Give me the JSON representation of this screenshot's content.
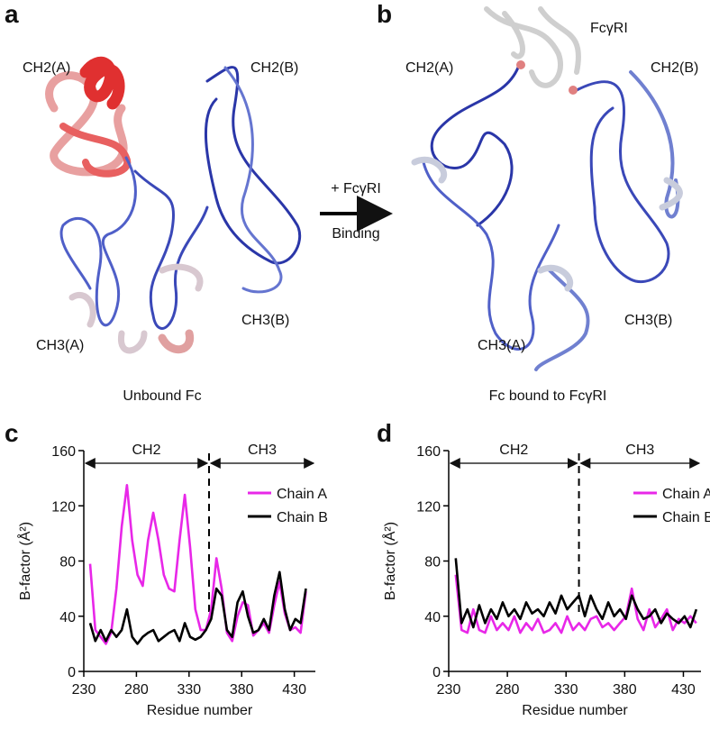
{
  "panels": [
    {
      "label": "a",
      "domains": [
        "CH2(A)",
        "CH2(B)",
        "CH3(A)",
        "CH3(B)"
      ],
      "caption": "Unbound Fc"
    },
    {
      "label": "b",
      "domains": [
        "CH2(A)",
        "CH2(B)",
        "CH3(A)",
        "CH3(B)"
      ],
      "receptor": "FcγRI",
      "caption": "Fc bound to FcγRI"
    }
  ],
  "arrow": {
    "top": "+ FcγRI",
    "bottom": "Binding"
  },
  "chart_data": [
    {
      "type": "line",
      "label": "c",
      "xlabel": "Residue number",
      "ylabel": "B-factor (Å²)",
      "x": [
        236,
        241,
        246,
        251,
        256,
        261,
        266,
        271,
        276,
        281,
        286,
        291,
        296,
        301,
        306,
        311,
        316,
        321,
        326,
        331,
        336,
        341,
        346,
        351,
        356,
        361,
        366,
        371,
        376,
        381,
        386,
        391,
        396,
        401,
        406,
        411,
        416,
        421,
        426,
        431,
        436,
        441
      ],
      "series": [
        {
          "name": "Chain A",
          "color": "#e827e8",
          "values": [
            78,
            30,
            25,
            20,
            28,
            60,
            105,
            135,
            95,
            70,
            62,
            95,
            115,
            95,
            70,
            60,
            58,
            95,
            128,
            90,
            45,
            30,
            30,
            45,
            82,
            60,
            28,
            22,
            40,
            50,
            48,
            26,
            30,
            35,
            28,
            48,
            65,
            42,
            30,
            32,
            28,
            58
          ]
        },
        {
          "name": "Chain B",
          "color": "#000000",
          "values": [
            35,
            22,
            30,
            22,
            30,
            25,
            30,
            45,
            25,
            20,
            25,
            28,
            30,
            22,
            25,
            28,
            30,
            22,
            35,
            25,
            23,
            25,
            30,
            38,
            60,
            55,
            30,
            25,
            50,
            58,
            40,
            28,
            30,
            38,
            30,
            55,
            72,
            45,
            30,
            38,
            35,
            60
          ]
        }
      ],
      "xlim": [
        230,
        450
      ],
      "ylim": [
        0,
        160
      ],
      "xticks": [
        230,
        280,
        330,
        380,
        430
      ],
      "yticks": [
        0,
        40,
        80,
        120,
        160
      ],
      "legend": "upper right",
      "regions": [
        "CH2",
        "CH3"
      ],
      "boundary": 349
    },
    {
      "type": "line",
      "label": "d",
      "xlabel": "Residue number",
      "ylabel": "B-factor (Å²)",
      "x": [
        236,
        241,
        246,
        251,
        256,
        261,
        266,
        271,
        276,
        281,
        286,
        291,
        296,
        301,
        306,
        311,
        316,
        321,
        326,
        331,
        336,
        341,
        346,
        351,
        356,
        361,
        366,
        371,
        376,
        381,
        386,
        391,
        396,
        401,
        406,
        411,
        416,
        421,
        426,
        431,
        436,
        441
      ],
      "series": [
        {
          "name": "Chain A",
          "color": "#e827e8",
          "values": [
            70,
            30,
            28,
            45,
            30,
            28,
            40,
            30,
            35,
            30,
            40,
            28,
            35,
            30,
            38,
            28,
            30,
            35,
            28,
            40,
            30,
            35,
            30,
            38,
            40,
            32,
            35,
            30,
            35,
            40,
            60,
            38,
            30,
            45,
            32,
            38,
            45,
            30,
            38,
            35,
            40,
            35
          ]
        },
        {
          "name": "Chain B",
          "color": "#000000",
          "values": [
            82,
            35,
            45,
            32,
            48,
            35,
            45,
            38,
            50,
            40,
            45,
            38,
            50,
            42,
            45,
            40,
            50,
            42,
            55,
            45,
            50,
            55,
            40,
            55,
            45,
            38,
            50,
            40,
            45,
            38,
            55,
            45,
            38,
            40,
            45,
            35,
            42,
            38,
            35,
            40,
            32,
            45
          ]
        }
      ],
      "xlim": [
        230,
        445
      ],
      "ylim": [
        0,
        160
      ],
      "xticks": [
        230,
        280,
        330,
        380,
        430
      ],
      "yticks": [
        0,
        40,
        80,
        120,
        160
      ],
      "legend": "upper right",
      "regions": [
        "CH2",
        "CH3"
      ],
      "boundary": 341
    }
  ]
}
